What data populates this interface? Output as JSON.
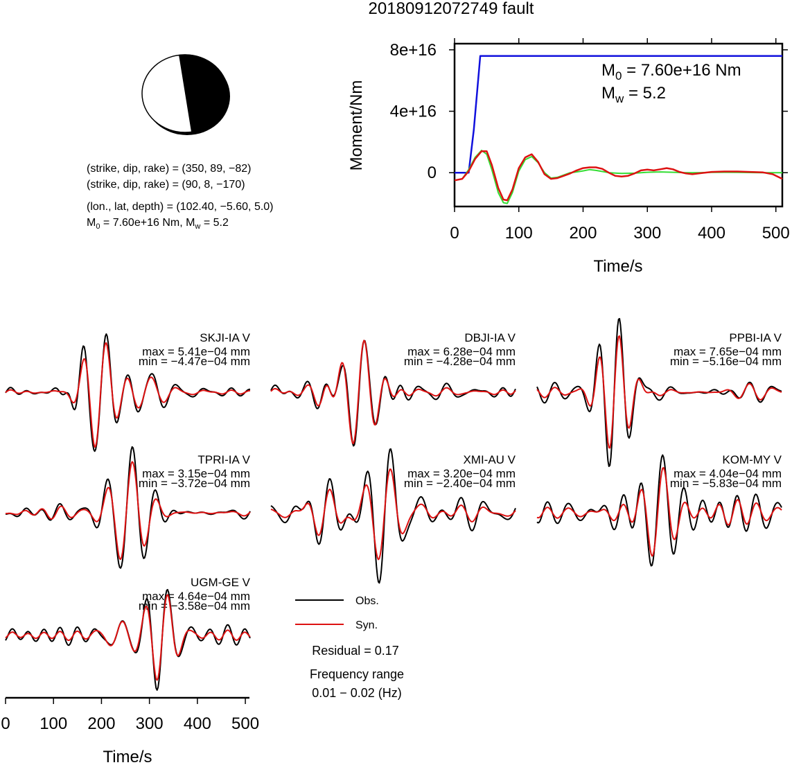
{
  "title": "20180912072749 fault",
  "focal_mechanism": {
    "plane1": "(strike, dip, rake) = (350, 89, −82)",
    "plane2": "(strike, dip, rake) = (90, 8, −170)",
    "location": "(lon., lat, depth) = (102.40, −5.60, 5.0)",
    "moment_line": {
      "m0_label": "M",
      "m0_sub": "0",
      "m0_value": " = 7.60e+16 Nm, M",
      "mw_sub": "w",
      "mw_value": " = 5.2"
    }
  },
  "legend": {
    "obs": "Obs.",
    "syn": "Syn.",
    "residual": "Residual = 0.17",
    "freq_title": "Frequency range",
    "freq_value": "0.01 − 0.02 (Hz)"
  },
  "colors": {
    "moment": "#1010dd",
    "obs": "#000000",
    "syn": "#dd1111",
    "stf": "#33dd33",
    "beachball_fill": "#000000"
  },
  "chart_data": [
    {
      "type": "line",
      "name": "moment-function",
      "xlabel": "Time/s",
      "ylabel": "Moment/Nm",
      "xlim": [
        0,
        510
      ],
      "ylim": [
        -2.2e+16,
        8.4e+16
      ],
      "xticks": [
        0,
        100,
        200,
        300,
        400,
        500
      ],
      "yticks": [
        0,
        4e+16,
        8e+16
      ],
      "ytick_labels": [
        "0",
        "4e+16",
        "8e+16"
      ],
      "annotation": {
        "m0": "M",
        "m0_sub": "0",
        "m0_text": " = 7.60e+16 Nm",
        "mw": "M",
        "mw_sub": "w",
        "mw_text": " = 5.2"
      },
      "moment": {
        "x": [
          0,
          22,
          30,
          40,
          510
        ],
        "y": [
          0,
          0,
          2.8e+16,
          7.6e+16,
          7.6e+16
        ]
      },
      "source_function_green": {
        "x": [
          0,
          12,
          22,
          32,
          42,
          50,
          58,
          68,
          76,
          82,
          90,
          100,
          110,
          120,
          130,
          140,
          150,
          160,
          170,
          180,
          190,
          200,
          210,
          220,
          230,
          240,
          260,
          280,
          300,
          320,
          340,
          360,
          380,
          400,
          420,
          440,
          460,
          480,
          510
        ],
        "y": [
          -5000000000000000.0,
          -4000000000000000.0,
          2000000000000000.0,
          1e+16,
          1.45e+16,
          1.2e+16,
          2000000000000000.0,
          -1.3e+16,
          -1.95e+16,
          -2e+16,
          -1.3e+16,
          1000000000000000.0,
          8500000000000000.0,
          1.05e+16,
          6500000000000000.0,
          0.0,
          -3500000000000000.0,
          -3000000000000000.0,
          -1500000000000000.0,
          0.0,
          500000000000000.0,
          1200000000000000.0,
          2000000000000000.0,
          1500000000000000.0,
          800000000000000.0,
          0.0,
          -500000000000000.0,
          -300000000000000.0,
          300000000000000.0,
          500000000000000.0,
          300000000000000.0,
          0.0,
          0.0,
          200000000000000.0,
          300000000000000.0,
          200000000000000.0,
          100000000000000.0,
          0.0,
          0.0
        ]
      },
      "source_function_red": {
        "x": [
          0,
          12,
          22,
          32,
          42,
          50,
          58,
          68,
          76,
          82,
          90,
          100,
          110,
          120,
          130,
          140,
          150,
          160,
          170,
          180,
          190,
          200,
          210,
          220,
          230,
          240,
          250,
          260,
          270,
          280,
          290,
          300,
          310,
          320,
          330,
          340,
          350,
          360,
          370,
          380,
          400,
          420,
          440,
          460,
          480,
          495,
          510
        ],
        "y": [
          -5000000000000000.0,
          -4000000000000000.0,
          1000000000000000.0,
          9000000000000000.0,
          1.4e+16,
          1.4e+16,
          5000000000000000.0,
          -1e+16,
          -1.75e+16,
          -1.8e+16,
          -1.1e+16,
          3000000000000000.0,
          1e+16,
          1.2e+16,
          7000000000000000.0,
          -1000000000000000.0,
          -4000000000000000.0,
          -3500000000000000.0,
          -2000000000000000.0,
          -500000000000000.0,
          1500000000000000.0,
          3000000000000000.0,
          3500000000000000.0,
          3500000000000000.0,
          2500000000000000.0,
          0.0,
          -2000000000000000.0,
          -2500000000000000.0,
          -2000000000000000.0,
          -500000000000000.0,
          1500000000000000.0,
          2000000000000000.0,
          1500000000000000.0,
          2200000000000000.0,
          3000000000000000.0,
          2200000000000000.0,
          500000000000000.0,
          -500000000000000.0,
          -1000000000000000.0,
          -500000000000000.0,
          500000000000000.0,
          800000000000000.0,
          800000000000000.0,
          500000000000000.0,
          200000000000000.0,
          -1000000000000000.0,
          -4000000000000000.0
        ]
      }
    },
    {
      "type": "line",
      "name": "waveforms",
      "xlabel": "Time/s",
      "xlim": [
        0,
        510
      ],
      "xticks": [
        0,
        100,
        200,
        300,
        400,
        500
      ],
      "stations": [
        {
          "station": "SKJI-IA V",
          "max": "max = 5.41e−04 mm",
          "min": "min = −4.47e−04 mm"
        },
        {
          "station": "DBJI-IA V",
          "max": "max = 6.28e−04 mm",
          "min": "min = −4.28e−04 mm"
        },
        {
          "station": "PPBI-IA V",
          "max": "max = 7.65e−04 mm",
          "min": "min = −5.16e−04 mm"
        },
        {
          "station": "TPRI-IA V",
          "max": "max = 3.15e−04 mm",
          "min": "min = −3.72e−04 mm"
        },
        {
          "station": "XMI-AU V",
          "max": "max = 3.20e−04 mm",
          "min": "min = −2.40e−04 mm"
        },
        {
          "station": "KOM-MY V",
          "max": "max = 4.04e−04 mm",
          "min": "min = −5.83e−04 mm"
        },
        {
          "station": "UGM-GE V",
          "max": "max = 4.64e−04 mm",
          "min": "min = −3.58e−04 mm"
        }
      ]
    }
  ]
}
